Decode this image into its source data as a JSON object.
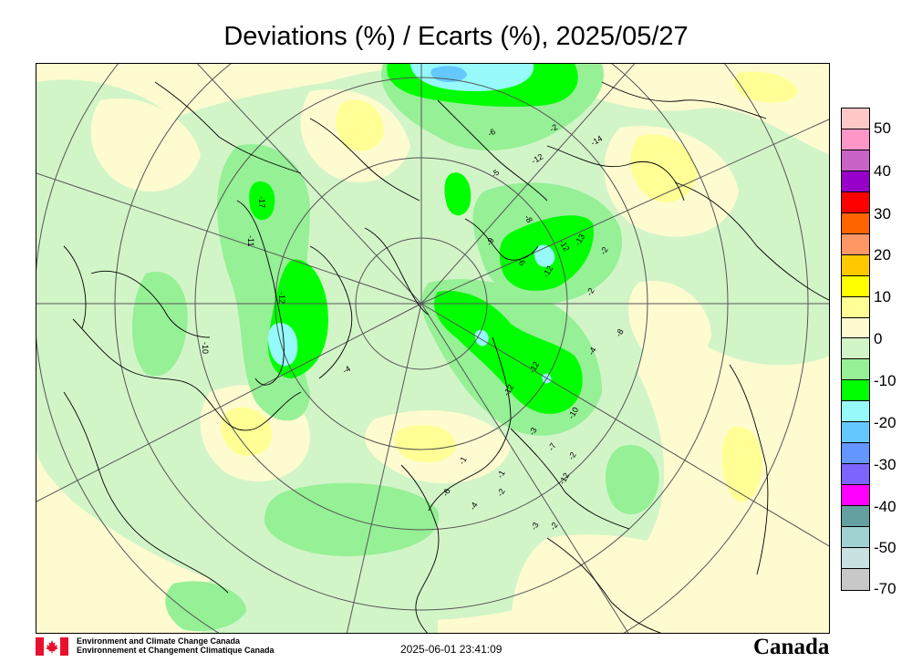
{
  "title": "Deviations (%) / Ecarts (%), 2025/05/27",
  "legend": {
    "swatches": [
      {
        "color": "#ffc8c8"
      },
      {
        "color": "#ff96c8"
      },
      {
        "color": "#c864c8"
      },
      {
        "color": "#9600c8"
      },
      {
        "color": "#ff0000"
      },
      {
        "color": "#ff6400"
      },
      {
        "color": "#ff9664"
      },
      {
        "color": "#ffc800"
      },
      {
        "color": "#ffff00"
      },
      {
        "color": "#ffff96"
      },
      {
        "color": "#fffbd0"
      },
      {
        "color": "#d2f5c8"
      },
      {
        "color": "#96f096"
      },
      {
        "color": "#00ff00"
      },
      {
        "color": "#96fafa"
      },
      {
        "color": "#64c8ff"
      },
      {
        "color": "#6496ff"
      },
      {
        "color": "#7d64ff"
      },
      {
        "color": "#ff00ff"
      },
      {
        "color": "#64a0a0"
      },
      {
        "color": "#a0d2d2"
      },
      {
        "color": "#c8e1e1"
      },
      {
        "color": "#c8c8c8"
      }
    ],
    "labels": [
      "50",
      "40",
      "30",
      "20",
      "10",
      "0",
      "-10",
      "-20",
      "-30",
      "-40",
      "-50",
      "-70"
    ]
  },
  "footer": {
    "org_en": "Environment and Climate Change Canada",
    "org_fr": "Environnement et Changement Climatique Canada",
    "timestamp": "2025-06-01 23:41:09",
    "wordmark": "Canada"
  },
  "stations": [
    "-6",
    "-2",
    "-12",
    "-14",
    "-5",
    "-8",
    "-12",
    "-9",
    "-6",
    "-12",
    "-13",
    "-2",
    "-2",
    "-8",
    "-4",
    "-12",
    "-12",
    "-10",
    "-3",
    "-7",
    "-2",
    "-1",
    "-12",
    "-2",
    "-6",
    "-4",
    "-1",
    "-3",
    "-2",
    "-17",
    "-11",
    "-12",
    "-10",
    "-4"
  ],
  "colors": {
    "light_yellow": "#fffbd0",
    "yellow": "#ffff96",
    "light_green": "#d2f5c8",
    "green": "#96f096",
    "bright_green": "#00ff00",
    "cyan": "#96fafa",
    "blue": "#64c8ff"
  }
}
